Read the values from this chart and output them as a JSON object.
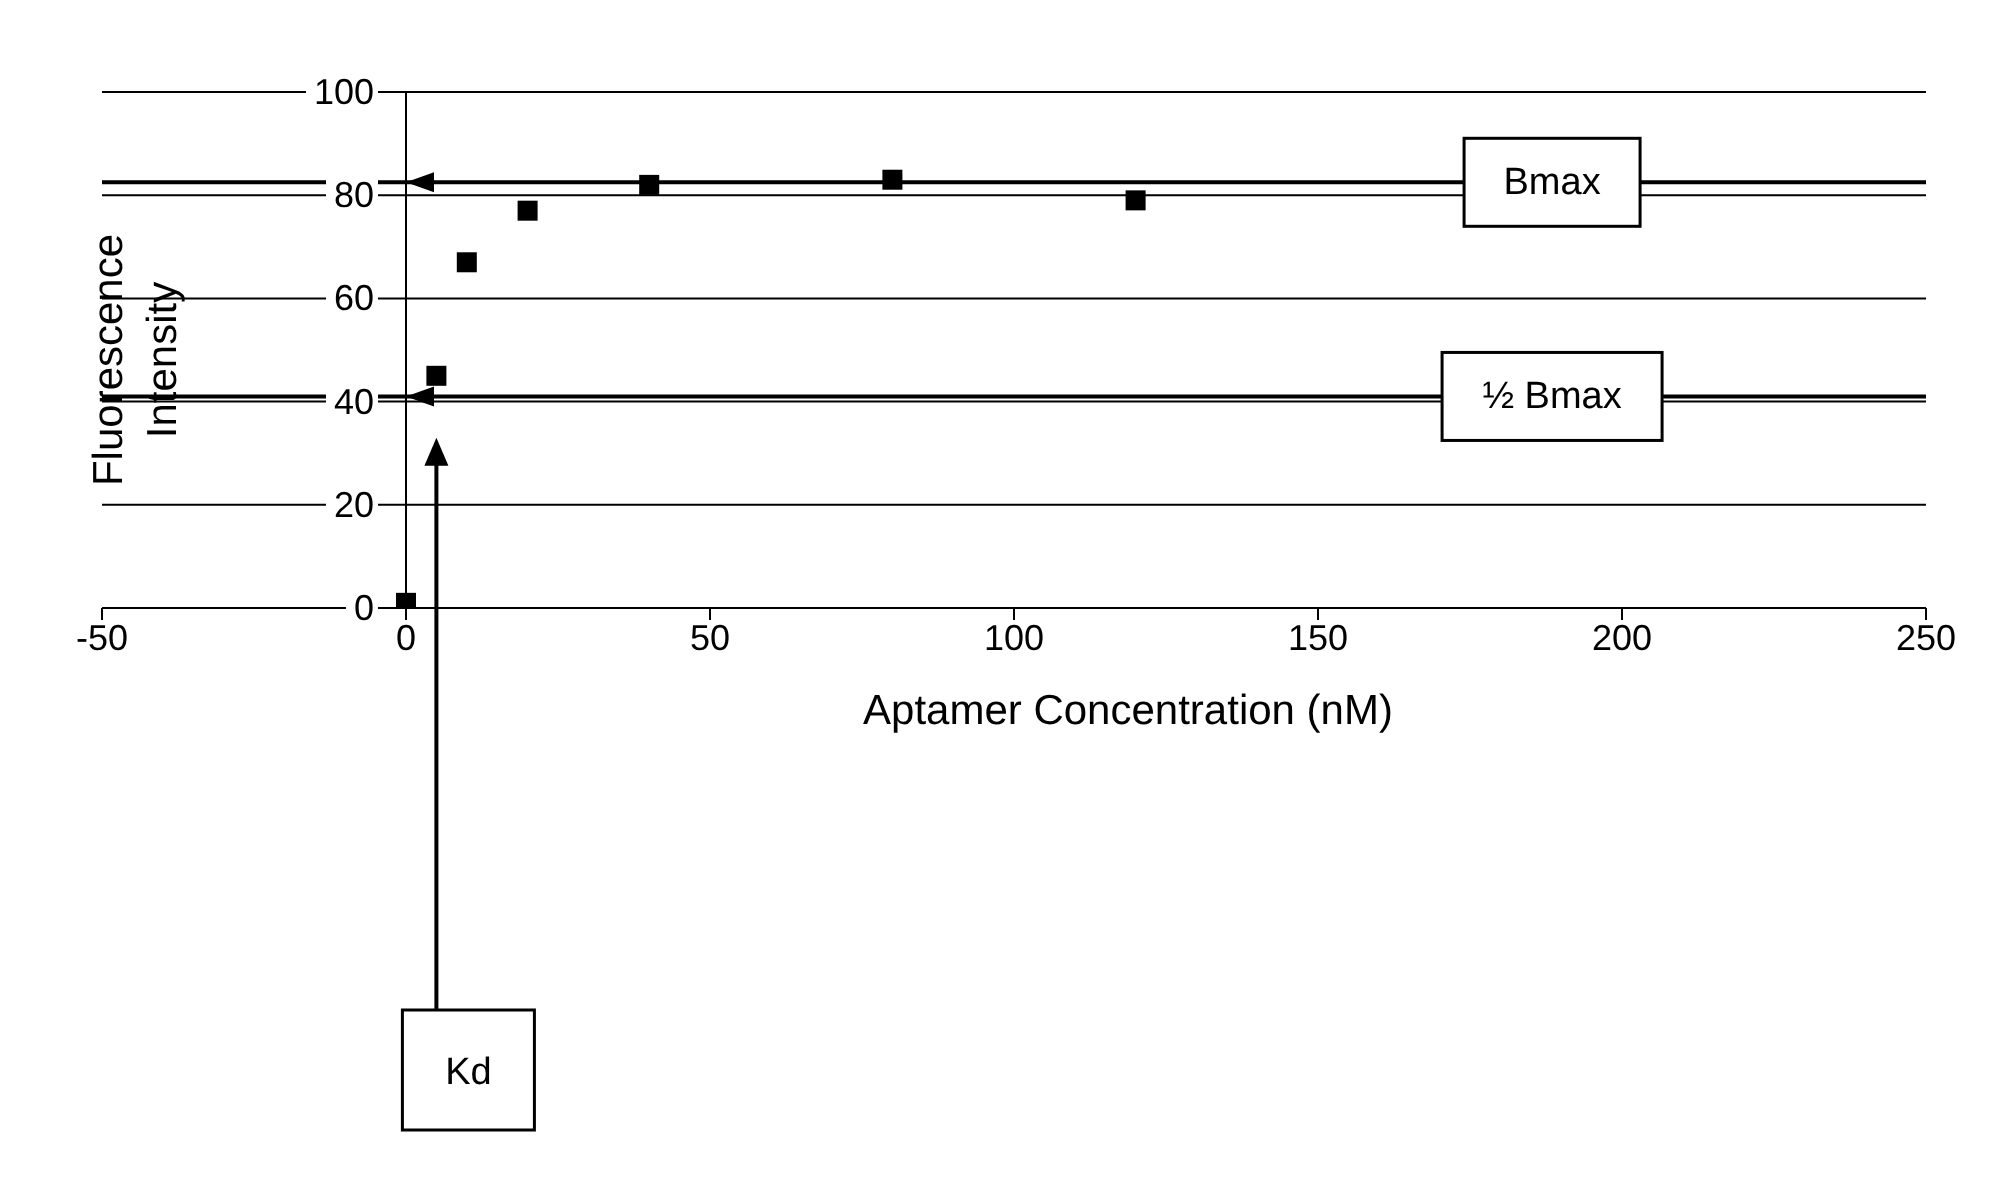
{
  "chart_data": {
    "type": "scatter",
    "xlabel": "Aptamer Concentration (nM)",
    "ylabel": "Fluorescence Intensity",
    "x": [
      0,
      5,
      10,
      20,
      40,
      80,
      120
    ],
    "series": [
      {
        "color": "#000000",
        "values": [
          1,
          45,
          67,
          77,
          82,
          83,
          79
        ]
      }
    ],
    "xlim": [
      -50,
      250
    ],
    "xticks": [
      -50,
      0,
      50,
      100,
      150,
      200,
      250
    ],
    "ylim": [
      0,
      100
    ],
    "yticks": [
      0,
      20,
      40,
      60,
      80,
      100
    ],
    "grid": "y",
    "legend": false,
    "marker": "square",
    "ref_lines": [
      {
        "axis": "y",
        "value": 82.5,
        "label": "Bmax",
        "color": "#000000"
      },
      {
        "axis": "y",
        "value": 41,
        "label": "½ Bmax",
        "color": "#000000"
      },
      {
        "axis": "x",
        "value": 5,
        "label": "Kd",
        "color": "#000000"
      }
    ]
  }
}
